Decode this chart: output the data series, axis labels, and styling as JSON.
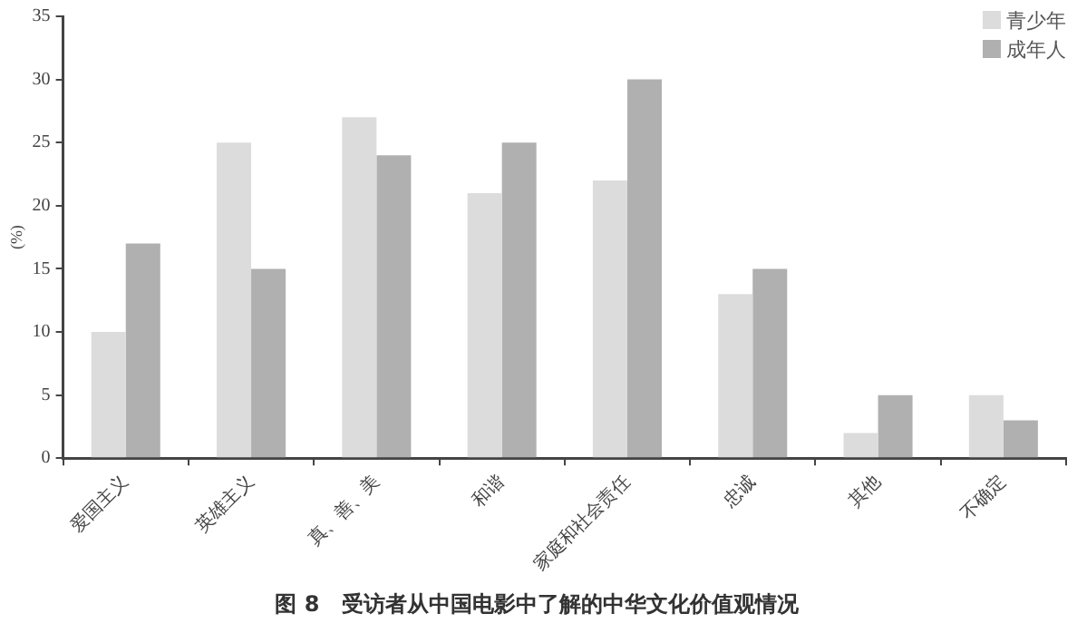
{
  "chart_data": {
    "type": "bar",
    "title": "图 8　受访者从中国电影中了解的中华文化价值观情况",
    "ylabel": "(%)",
    "categories": [
      "爱国主义",
      "英雄主义",
      "真、善、美",
      "和谐",
      "家庭和社会责任",
      "忠诚",
      "其他",
      "不确定"
    ],
    "series": [
      {
        "name": "青少年",
        "color": "#dcdcdc",
        "values": [
          10,
          25,
          27,
          21,
          22,
          13,
          2,
          5
        ]
      },
      {
        "name": "成年人",
        "color": "#b0b0b0",
        "values": [
          17,
          15,
          24,
          25,
          30,
          15,
          5,
          3
        ]
      }
    ],
    "ylim": [
      0,
      35
    ],
    "yticks": [
      0,
      5,
      10,
      15,
      20,
      25,
      30,
      35
    ],
    "grid": false,
    "legend": "top right"
  }
}
